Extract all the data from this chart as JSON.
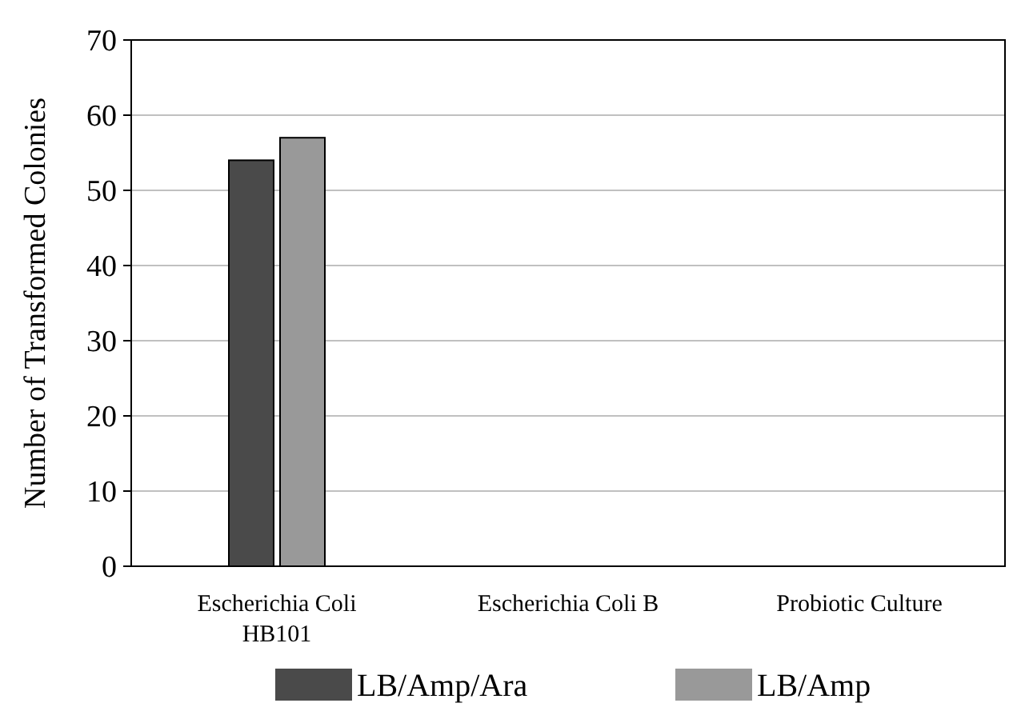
{
  "chart_data": {
    "type": "bar",
    "ylabel": "Number of Transformed Colonies",
    "categories": [
      "Escherichia Coli HB101",
      "Escherichia Coli B",
      "Probiotic Culture"
    ],
    "series": [
      {
        "name": "LB/Amp/Ara",
        "color": "#4a4a4a",
        "values": [
          54,
          0,
          0
        ]
      },
      {
        "name": "LB/Amp",
        "color": "#999999",
        "values": [
          57,
          0,
          0
        ]
      }
    ],
    "ylim": [
      0,
      70
    ],
    "yticks": [
      0,
      10,
      20,
      30,
      40,
      50,
      60,
      70
    ],
    "grid": "y",
    "legend": "bottom"
  }
}
